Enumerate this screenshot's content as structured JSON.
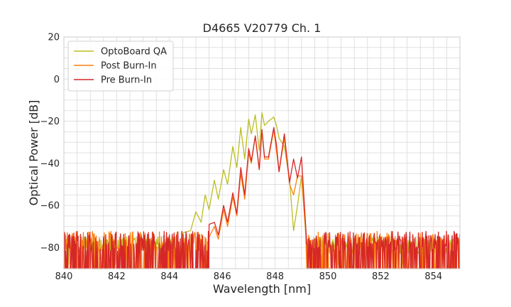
{
  "chart_data": {
    "type": "line",
    "title": "D4665 V20779 Ch. 1",
    "xlabel": "Wavelength [nm]",
    "ylabel": "Optical Power [dB]",
    "xlim": [
      840,
      855
    ],
    "ylim": [
      -90,
      20
    ],
    "xticks": [
      840,
      842,
      844,
      846,
      848,
      850,
      852,
      854
    ],
    "yticks": [
      20,
      0,
      -20,
      -40,
      -60,
      -80
    ],
    "xtick_labels": [
      "840",
      "842",
      "844",
      "846",
      "848",
      "850",
      "852",
      "854"
    ],
    "ytick_labels": [
      "20",
      "0",
      "−20",
      "−40",
      "−60",
      "−80"
    ],
    "grid": true,
    "legend_position": "top-left",
    "colors": {
      "optoboard": "#bcbd22",
      "post": "#ff7f0e",
      "pre": "#d62728"
    },
    "series": [
      {
        "name": "OptoBoard QA",
        "color": "#bcbd22",
        "noise_floor": {
          "x_ranges": [
            [
              840,
              844.5
            ],
            [
              849.2,
              855
            ]
          ],
          "mean": -79,
          "spread": 4
        },
        "x": [
          844.5,
          844.8,
          845.0,
          845.2,
          845.35,
          845.5,
          845.7,
          845.85,
          846.05,
          846.2,
          846.4,
          846.55,
          846.7,
          846.85,
          847.0,
          847.1,
          847.25,
          847.4,
          847.5,
          847.6,
          847.75,
          847.95,
          848.05,
          848.15,
          848.35,
          848.55,
          848.7,
          848.85,
          849.0,
          849.15
        ],
        "y": [
          -73,
          -72,
          -63,
          -68,
          -55,
          -62,
          -48,
          -57,
          -43,
          -50,
          -32,
          -42,
          -23,
          -38,
          -19,
          -26,
          -17,
          -34,
          -16,
          -22,
          -20,
          -18,
          -22,
          -28,
          -32,
          -48,
          -72,
          -60,
          -46,
          -72
        ]
      },
      {
        "name": "Post Burn-In",
        "color": "#ff7f0e",
        "noise_floor": {
          "x_ranges": [
            [
              840,
              845.5
            ],
            [
              849.2,
              855
            ]
          ],
          "mean": -81,
          "spread": 6
        },
        "x": [
          845.5,
          845.7,
          845.85,
          846.05,
          846.2,
          846.4,
          846.55,
          846.7,
          846.85,
          847.0,
          847.1,
          847.25,
          847.4,
          847.5,
          847.6,
          847.75,
          847.95,
          848.05,
          848.15,
          848.35,
          848.55,
          848.7,
          848.85,
          849.0,
          849.15
        ],
        "y": [
          -75,
          -70,
          -76,
          -62,
          -70,
          -56,
          -65,
          -45,
          -57,
          -35,
          -40,
          -27,
          -43,
          -24,
          -38,
          -38,
          -24,
          -34,
          -44,
          -28,
          -50,
          -55,
          -46,
          -46,
          -70
        ]
      },
      {
        "name": "Pre Burn-In",
        "color": "#d62728",
        "noise_floor": {
          "x_ranges": [
            [
              840,
              845.5
            ],
            [
              849.2,
              855
            ]
          ],
          "mean": -81,
          "spread": 6
        },
        "x": [
          845.5,
          845.7,
          845.85,
          846.05,
          846.2,
          846.4,
          846.55,
          846.7,
          846.85,
          847.0,
          847.1,
          847.25,
          847.4,
          847.5,
          847.6,
          847.75,
          847.95,
          848.05,
          848.15,
          848.35,
          848.55,
          848.7,
          848.85,
          849.0,
          849.15
        ],
        "y": [
          -69,
          -68,
          -74,
          -60,
          -68,
          -54,
          -64,
          -42,
          -55,
          -33,
          -39,
          -27,
          -43,
          -24,
          -37,
          -37,
          -23,
          -31,
          -44,
          -26,
          -49,
          -38,
          -47,
          -37,
          -68
        ]
      }
    ]
  }
}
